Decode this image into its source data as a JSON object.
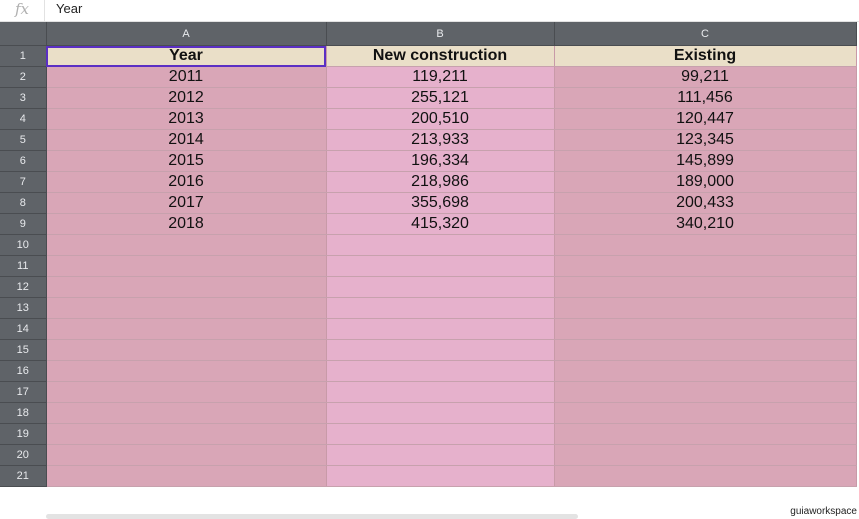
{
  "formula_bar": {
    "fx_label": "fx",
    "value": "Year"
  },
  "columns": [
    "A",
    "B",
    "C"
  ],
  "row_numbers": [
    "1",
    "2",
    "3",
    "4",
    "5",
    "6",
    "7",
    "8",
    "9",
    "10",
    "11",
    "12",
    "13",
    "14",
    "15",
    "16",
    "17",
    "18",
    "19",
    "20",
    "21"
  ],
  "header_row": [
    "Year",
    "New construction",
    "Existing"
  ],
  "data_rows": [
    [
      "2011",
      "119,211",
      "99,211"
    ],
    [
      "2012",
      "255,121",
      "111,456"
    ],
    [
      "2013",
      "200,510",
      "120,447"
    ],
    [
      "2014",
      "213,933",
      "123,345"
    ],
    [
      "2015",
      "196,334",
      "145,899"
    ],
    [
      "2016",
      "218,986",
      "189,000"
    ],
    [
      "2017",
      "355,698",
      "200,433"
    ],
    [
      "2018",
      "415,320",
      "340,210"
    ]
  ],
  "selected_cell": "A1",
  "watermark": "guiaworkspace",
  "colors": {
    "header_bar": "#5f6368",
    "header_fill": "#eadfc8",
    "col_a_fill": "#d9a6b7",
    "col_b_fill": "#e6b1cc",
    "selection_border": "#5b2fc4"
  }
}
